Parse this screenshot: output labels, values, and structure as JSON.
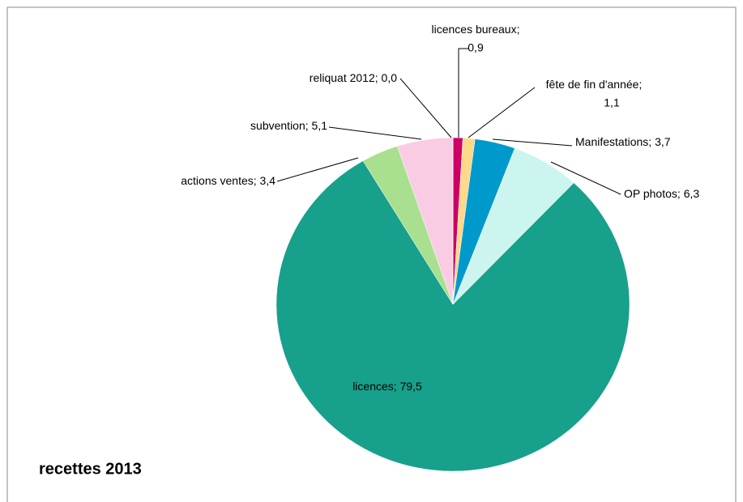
{
  "chart_data": {
    "type": "pie",
    "title": "recettes 2013",
    "categories": [
      "licences bureaux",
      "fête de fin d'année",
      "Manifestations",
      "OP photos",
      "licences",
      "actions ventes",
      "subvention",
      "reliquat 2012"
    ],
    "values": [
      0.9,
      1.1,
      3.7,
      6.3,
      79.5,
      3.4,
      5.1,
      0.0
    ],
    "value_labels": [
      "0,9",
      "1,1",
      "3,7",
      "6,3",
      "79,5",
      "3,4",
      "5,1",
      "0,0"
    ],
    "label_separator": ";",
    "colors": [
      "#cc0066",
      "#ffd98a",
      "#0099cc",
      "#ccf5f0",
      "#17a08b",
      "#a8e08f",
      "#f9cce3",
      "#8064a2"
    ]
  }
}
